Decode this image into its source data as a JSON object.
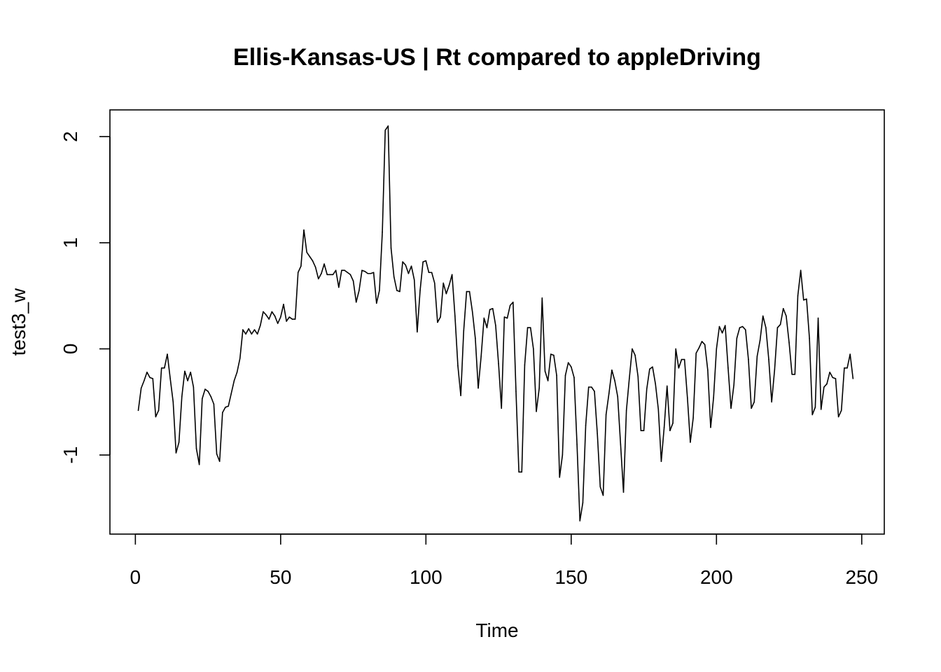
{
  "chart_data": {
    "type": "line",
    "title": "Ellis-Kansas-US | Rt compared to appleDriving",
    "xlabel": "Time",
    "ylabel": "test3_w",
    "xlim": [
      1,
      248
    ],
    "ylim": [
      -1.6,
      2.1
    ],
    "x_ticks": [
      0,
      50,
      100,
      150,
      200,
      250
    ],
    "y_ticks": [
      -1,
      0,
      1,
      2
    ],
    "x_tick_labels": [
      "0",
      "50",
      "100",
      "150",
      "200",
      "250"
    ],
    "y_tick_labels": [
      "-1",
      "0",
      "1",
      "2"
    ],
    "grid": false,
    "legend": "none",
    "series": [
      {
        "color": "#000000",
        "x_start": 1,
        "x_step": 1,
        "values": [
          -0.58,
          -0.37,
          -0.3,
          -0.22,
          -0.27,
          -0.28,
          -0.64,
          -0.58,
          -0.18,
          -0.18,
          -0.05,
          -0.28,
          -0.5,
          -0.98,
          -0.88,
          -0.45,
          -0.21,
          -0.3,
          -0.22,
          -0.36,
          -0.94,
          -1.09,
          -0.47,
          -0.38,
          -0.4,
          -0.45,
          -0.52,
          -0.99,
          -1.06,
          -0.6,
          -0.55,
          -0.54,
          -0.42,
          -0.3,
          -0.22,
          -0.09,
          0.18,
          0.14,
          0.19,
          0.14,
          0.18,
          0.14,
          0.22,
          0.35,
          0.32,
          0.28,
          0.35,
          0.31,
          0.24,
          0.3,
          0.42,
          0.26,
          0.3,
          0.28,
          0.28,
          0.72,
          0.78,
          1.12,
          0.91,
          0.87,
          0.83,
          0.77,
          0.66,
          0.71,
          0.8,
          0.7,
          0.7,
          0.7,
          0.74,
          0.58,
          0.74,
          0.74,
          0.72,
          0.7,
          0.64,
          0.44,
          0.55,
          0.74,
          0.73,
          0.71,
          0.71,
          0.72,
          0.43,
          0.55,
          1.1,
          2.06,
          2.1,
          0.95,
          0.68,
          0.55,
          0.54,
          0.82,
          0.79,
          0.71,
          0.78,
          0.65,
          0.16,
          0.55,
          0.82,
          0.83,
          0.72,
          0.72,
          0.62,
          0.25,
          0.3,
          0.62,
          0.52,
          0.6,
          0.7,
          0.31,
          -0.16,
          -0.44,
          0.17,
          0.54,
          0.54,
          0.35,
          0.1,
          -0.37,
          -0.07,
          0.29,
          0.2,
          0.37,
          0.38,
          0.22,
          -0.14,
          -0.56,
          0.3,
          0.29,
          0.41,
          0.44,
          -0.4,
          -1.16,
          -1.16,
          -0.15,
          0.2,
          0.2,
          0.0,
          -0.59,
          -0.37,
          0.48,
          -0.21,
          -0.3,
          -0.05,
          -0.06,
          -0.25,
          -1.21,
          -1.0,
          -0.25,
          -0.13,
          -0.17,
          -0.27,
          -0.9,
          -1.62,
          -1.45,
          -0.72,
          -0.36,
          -0.36,
          -0.4,
          -0.8,
          -1.3,
          -1.38,
          -0.62,
          -0.42,
          -0.2,
          -0.3,
          -0.45,
          -0.9,
          -1.35,
          -0.58,
          -0.28,
          0.0,
          -0.06,
          -0.26,
          -0.77,
          -0.77,
          -0.38,
          -0.19,
          -0.17,
          -0.33,
          -0.57,
          -1.06,
          -0.74,
          -0.35,
          -0.77,
          -0.7,
          0.0,
          -0.18,
          -0.1,
          -0.1,
          -0.46,
          -0.88,
          -0.65,
          -0.04,
          0.01,
          0.07,
          0.04,
          -0.2,
          -0.74,
          -0.46,
          0.0,
          0.21,
          0.15,
          0.22,
          -0.18,
          -0.56,
          -0.34,
          0.1,
          0.2,
          0.21,
          0.18,
          -0.1,
          -0.56,
          -0.5,
          -0.07,
          0.08,
          0.31,
          0.2,
          -0.1,
          -0.5,
          -0.2,
          0.2,
          0.23,
          0.38,
          0.31,
          0.06,
          -0.24,
          -0.24,
          0.5,
          0.74,
          0.46,
          0.47,
          0.1,
          -0.62,
          -0.55,
          0.29,
          -0.57,
          -0.36,
          -0.33,
          -0.22,
          -0.27,
          -0.28,
          -0.64,
          -0.58,
          -0.18,
          -0.18,
          -0.05,
          -0.28
        ]
      }
    ]
  }
}
